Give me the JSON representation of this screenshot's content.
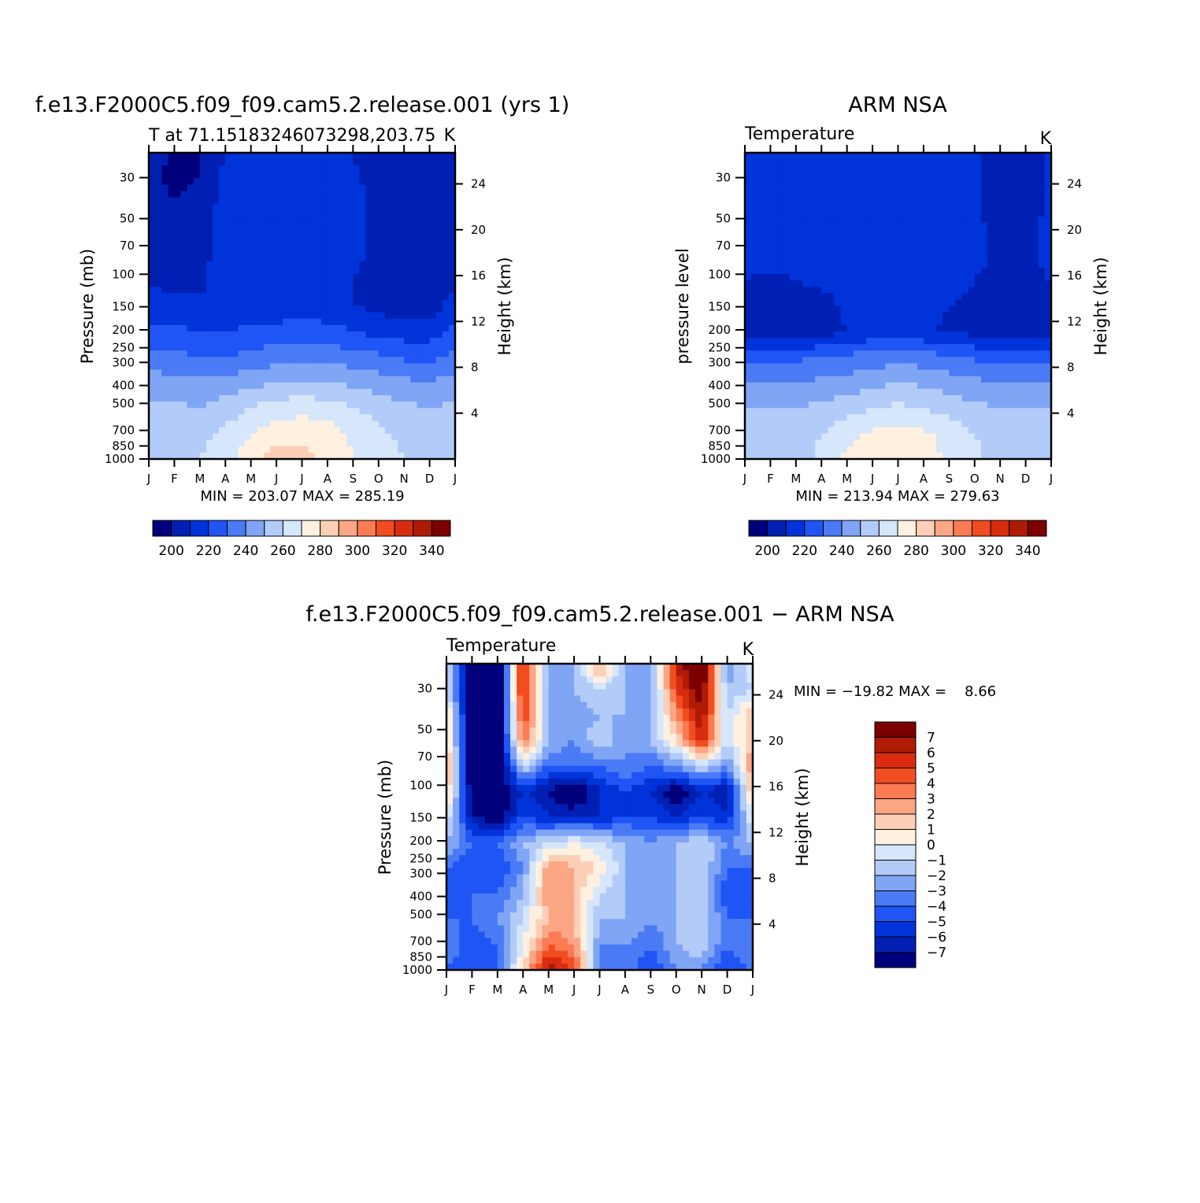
{
  "chart_data": [
    {
      "type": "heatmap",
      "title": "f.e13.F2000C5.f09_f09.cam5.2.release.001 (yrs 1)",
      "subtitle_left": "T at 71.15183246073298,203.75",
      "subtitle_right": "K",
      "ylabel": "Pressure (mb)",
      "ylabel_right": "Height (km)",
      "x_ticks": [
        "J",
        "F",
        "M",
        "A",
        "M",
        "J",
        "J",
        "A",
        "S",
        "O",
        "N",
        "D",
        "J"
      ],
      "y_ticks": [
        "30",
        "50",
        "70",
        "100",
        "150",
        "200",
        "250",
        "300",
        "400",
        "500",
        "700",
        "850",
        "1000"
      ],
      "y_right_ticks": [
        "24",
        "20",
        "16",
        "12",
        "8",
        "4"
      ],
      "stats": "MIN = 203.07 MAX = 285.19",
      "colorbar_labels": [
        "200",
        "220",
        "240",
        "260",
        "280",
        "300",
        "320",
        "340"
      ],
      "colorbar_min": 190,
      "colorbar_max": 350,
      "colorbar_step": 10,
      "grid": [
        [
          210,
          195,
          200,
          210,
          210,
          210,
          210,
          210,
          210,
          200,
          202,
          205,
          210
        ],
        [
          207,
          195,
          200,
          213,
          213,
          213,
          213,
          213,
          213,
          204,
          205,
          204,
          207
        ],
        [
          207,
          200,
          205,
          213,
          214,
          214,
          214,
          214,
          213,
          207,
          205,
          204,
          207
        ],
        [
          205,
          205,
          208,
          213,
          215,
          216,
          216,
          216,
          213,
          208,
          205,
          204,
          205
        ],
        [
          205,
          205,
          208,
          213,
          214,
          215,
          216,
          215,
          212,
          207,
          205,
          204,
          205
        ],
        [
          208,
          207,
          208,
          214,
          214,
          214,
          212,
          213,
          210,
          208,
          205,
          205,
          208
        ],
        [
          215,
          213,
          212,
          212,
          212,
          212,
          213,
          212,
          210,
          208,
          205,
          205,
          215
        ],
        [
          222,
          222,
          220,
          220,
          222,
          224,
          226,
          224,
          220,
          215,
          215,
          215,
          222
        ],
        [
          233,
          232,
          230,
          230,
          233,
          235,
          237,
          236,
          234,
          232,
          228,
          226,
          233
        ],
        [
          245,
          244,
          243,
          244,
          247,
          250,
          252,
          250,
          248,
          245,
          242,
          240,
          245
        ],
        [
          252,
          252,
          250,
          255,
          260,
          265,
          266,
          265,
          260,
          256,
          252,
          250,
          252
        ],
        [
          258,
          258,
          258,
          262,
          270,
          276,
          278,
          275,
          268,
          262,
          258,
          257,
          258
        ],
        [
          260,
          260,
          260,
          266,
          276,
          285,
          283,
          278,
          270,
          263,
          260,
          258,
          260
        ]
      ]
    },
    {
      "type": "heatmap",
      "title": "ARM NSA",
      "subtitle_left": "Temperature",
      "subtitle_right": "K",
      "ylabel": "pressure level",
      "ylabel_right": "Height (km)",
      "x_ticks": [
        "J",
        "F",
        "M",
        "A",
        "M",
        "J",
        "J",
        "A",
        "S",
        "O",
        "N",
        "D",
        "J"
      ],
      "y_ticks": [
        "30",
        "50",
        "70",
        "100",
        "150",
        "200",
        "250",
        "300",
        "400",
        "500",
        "700",
        "850",
        "1000"
      ],
      "y_right_ticks": [
        "24",
        "20",
        "16",
        "12",
        "8",
        "4"
      ],
      "stats": "MIN = 213.94 MAX = 279.63",
      "colorbar_labels": [
        "200",
        "220",
        "240",
        "260",
        "280",
        "300",
        "320",
        "340"
      ],
      "colorbar_min": 190,
      "colorbar_max": 350,
      "colorbar_step": 10,
      "grid": [
        [
          214,
          214,
          214,
          214,
          214,
          214,
          214,
          214,
          214,
          212,
          206,
          206,
          212
        ],
        [
          214,
          214,
          214,
          214,
          214,
          214,
          214,
          214,
          214,
          212,
          206,
          206,
          212
        ],
        [
          214,
          214,
          214,
          214,
          214,
          214,
          214,
          214,
          214,
          212,
          206,
          206,
          212
        ],
        [
          214,
          214,
          214,
          214,
          214,
          214,
          214,
          214,
          214,
          212,
          207,
          206,
          213
        ],
        [
          214,
          214,
          214,
          214,
          214,
          214,
          214,
          214,
          214,
          212,
          208,
          207,
          214
        ],
        [
          210,
          208,
          210,
          212,
          214,
          214,
          214,
          214,
          213,
          210,
          208,
          207,
          210
        ],
        [
          207,
          205,
          205,
          206,
          212,
          213,
          214,
          213,
          210,
          207,
          206,
          206,
          207
        ],
        [
          205,
          203,
          202,
          205,
          210,
          212,
          213,
          212,
          208,
          207,
          206,
          205,
          205
        ],
        [
          226,
          226,
          228,
          230,
          232,
          234,
          236,
          234,
          232,
          228,
          226,
          226,
          226
        ],
        [
          240,
          240,
          240,
          242,
          244,
          246,
          250,
          248,
          245,
          242,
          240,
          240,
          240
        ],
        [
          250,
          250,
          250,
          252,
          256,
          260,
          262,
          260,
          256,
          252,
          250,
          250,
          250
        ],
        [
          255,
          255,
          255,
          260,
          267,
          272,
          274,
          272,
          266,
          260,
          255,
          255,
          255
        ],
        [
          255,
          255,
          256,
          262,
          272,
          279,
          279,
          276,
          268,
          262,
          256,
          255,
          255
        ]
      ]
    },
    {
      "type": "heatmap",
      "title": "f.e13.F2000C5.f09_f09.cam5.2.release.001 − ARM NSA",
      "subtitle_left": "Temperature",
      "subtitle_right": "K",
      "ylabel": "Pressure (mb)",
      "ylabel_right": "Height (km)",
      "x_ticks": [
        "J",
        "F",
        "M",
        "A",
        "M",
        "J",
        "J",
        "A",
        "S",
        "O",
        "N",
        "D",
        "J"
      ],
      "y_ticks": [
        "30",
        "50",
        "70",
        "100",
        "150",
        "200",
        "250",
        "300",
        "400",
        "500",
        "700",
        "850",
        "1000"
      ],
      "y_right_ticks": [
        "24",
        "20",
        "16",
        "12",
        "8",
        "4"
      ],
      "stats": "MIN = −19.82 MAX =    8.66",
      "colorbar_labels": [
        "7",
        "6",
        "5",
        "4",
        "3",
        "2",
        "1",
        "0",
        "−1",
        "−2",
        "−3",
        "−4",
        "−5",
        "−6",
        "−7"
      ],
      "colorbar_min": -8,
      "colorbar_max": 8,
      "colorbar_step": 1,
      "grid": [
        [
          0,
          -9,
          -9,
          6,
          -2,
          -2,
          3,
          -2,
          -3,
          6,
          9,
          -3,
          0
        ],
        [
          -1,
          -9,
          -9,
          6,
          -3,
          -2,
          -1,
          -2,
          -3,
          5,
          8,
          -2,
          -1
        ],
        [
          2,
          -9,
          -9,
          5,
          -2,
          -3,
          -2,
          -2,
          -2,
          3,
          7,
          -1,
          2
        ],
        [
          2,
          -9,
          -9,
          4,
          -2,
          -3,
          -1,
          -3,
          -2,
          1,
          6,
          -1,
          2
        ],
        [
          3,
          -9,
          -9,
          -1,
          -4,
          -4,
          -4,
          -3,
          -4,
          -3,
          -1,
          -3,
          3
        ],
        [
          2,
          -8,
          -8,
          -6,
          -7,
          -9,
          -6,
          -5,
          -6,
          -8,
          -6,
          -7,
          2
        ],
        [
          0,
          -7,
          -8,
          -5,
          -6,
          -6,
          -6,
          -5,
          -5,
          -6,
          -5,
          -6,
          0
        ],
        [
          -2,
          -4,
          -4,
          -2,
          -1,
          0,
          -1,
          -2,
          -3,
          -2,
          -1,
          -3,
          -2
        ],
        [
          -4,
          -5,
          -5,
          -3,
          3,
          2,
          1,
          -2,
          -3,
          -2,
          -1,
          -4,
          -4
        ],
        [
          -5,
          -4,
          -4,
          -2,
          3,
          2,
          -1,
          -2,
          -3,
          -2,
          -1,
          -5,
          -5
        ],
        [
          -4,
          -4,
          -3,
          -1,
          2,
          2,
          -2,
          -2,
          -3,
          -2,
          -1,
          -4,
          -4
        ],
        [
          -3,
          -5,
          -4,
          0,
          4,
          3,
          -3,
          -3,
          -4,
          -2,
          -1,
          -4,
          -3
        ],
        [
          -4,
          -5,
          -4,
          1,
          7,
          5,
          -4,
          -3,
          -5,
          -3,
          -3,
          -5,
          -4
        ]
      ]
    }
  ]
}
